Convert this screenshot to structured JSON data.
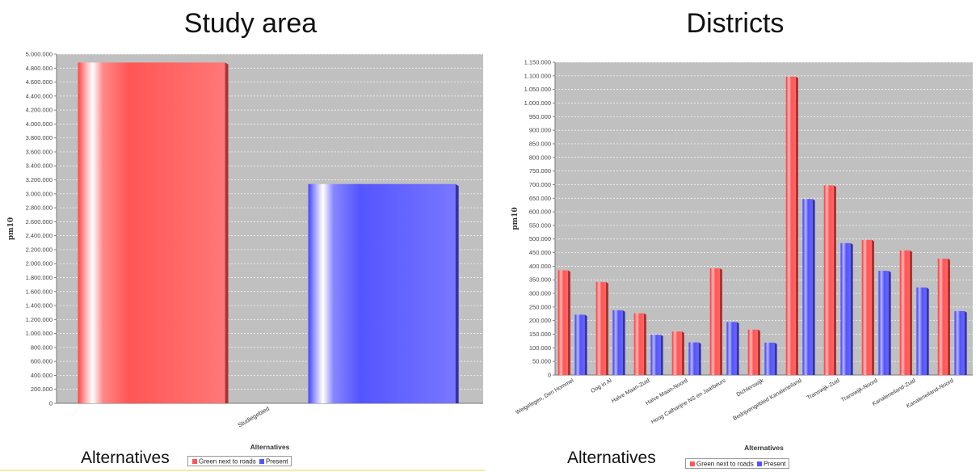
{
  "chart_data": [
    {
      "type": "bar",
      "title": "Study area",
      "xlabel": "Alternatives",
      "ylabel": "pm10",
      "categories": [
        "Studiegebied"
      ],
      "series": [
        {
          "name": "Green next to roads",
          "values": [
            4880000
          ]
        },
        {
          "name": "Present",
          "values": [
            3140000
          ]
        }
      ],
      "ylim": [
        0,
        5000000
      ],
      "yticks": [
        "0",
        "200.000",
        "400.000",
        "600.000",
        "800.000",
        "1.000.000",
        "1.200.000",
        "1.400.000",
        "1.600.000",
        "1.800.000",
        "2.000.000",
        "2.200.000",
        "2.400.000",
        "2.600.000",
        "2.800.000",
        "3.000.000",
        "3.200.000",
        "3.400.000",
        "3.600.000",
        "3.800.000",
        "4.000.000",
        "4.200.000",
        "4.400.000",
        "4.600.000",
        "4.800.000",
        "5.000.000"
      ],
      "legend_title": "Alternatives",
      "legend_placement": "bottom-left",
      "grid": true
    },
    {
      "type": "bar",
      "title": "Districts",
      "xlabel": "Alternatives",
      "ylabel": "pm10",
      "categories": [
        "Welgelegen, Den Hommel",
        "Oog in Al",
        "Halve Maan-Zuid",
        "Halve Maan-Noord",
        "Hoog Catharijne NS en Jaarbeurs",
        "Dichterswijk",
        "Bedrijvengebied Kanaleneiland",
        "Transwijk-Zuid",
        "Transwijk-Noord",
        "Kanaleneiland-Zuid",
        "Kanaleneiland-Noord"
      ],
      "series": [
        {
          "name": "Green next to roads",
          "values": [
            385000,
            342000,
            227000,
            160000,
            392000,
            167000,
            1097000,
            697000,
            497000,
            458000,
            428000
          ]
        },
        {
          "name": "Present",
          "values": [
            222000,
            238000,
            148000,
            120000,
            195000,
            119000,
            647000,
            485000,
            383000,
            322000,
            235000
          ]
        }
      ],
      "ylim": [
        0,
        1150000
      ],
      "yticks": [
        "0",
        "50.000",
        "100.000",
        "150.000",
        "200.000",
        "250.000",
        "300.000",
        "350.000",
        "400.000",
        "450.000",
        "500.000",
        "550.000",
        "600.000",
        "650.000",
        "700.000",
        "750.000",
        "800.000",
        "850.000",
        "900.000",
        "950.000",
        "1.000.000",
        "1.050.000",
        "1.100.000",
        "1.150.000"
      ],
      "legend_title": "Alternatives",
      "legend_placement": "bottom-left",
      "grid": true
    }
  ],
  "colors": {
    "green_next_to_roads": "#ff5555",
    "present": "#5555ff",
    "plot_background": "#c0c0c0",
    "grid": "#ffffff"
  }
}
